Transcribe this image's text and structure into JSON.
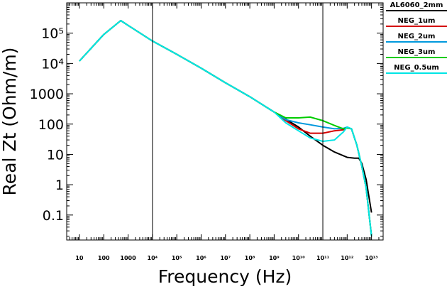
{
  "chart_data": {
    "type": "line",
    "xlabel": "Frequency (Hz)",
    "ylabel": "Real Zt (Ohm/m)",
    "x_scale": "log",
    "y_scale": "log",
    "xlim": [
      3,
      30000000000000.0
    ],
    "ylim": [
      0.015,
      1000000
    ],
    "grid": false,
    "legend_position": "right",
    "x_ticks": [
      10,
      100,
      1000,
      10000,
      100000,
      1000000,
      10000000,
      100000000,
      1000000000,
      10000000000,
      100000000000,
      1000000000000,
      10000000000000
    ],
    "x_tick_labels": [
      "10",
      "100",
      "1000",
      "10⁴",
      "10⁵",
      "10⁶",
      "10⁷",
      "10⁸",
      "10⁹",
      "10¹⁰",
      "10¹¹",
      "10¹²",
      "10¹³"
    ],
    "y_ticks": [
      0.1,
      1,
      10,
      100,
      1000,
      10000,
      100000
    ],
    "y_tick_labels": [
      "0.1",
      "1",
      "10",
      "100",
      "1000",
      "10⁴",
      "10⁵"
    ],
    "vertical_lines": [
      10000,
      100000000000
    ],
    "series": [
      {
        "name": "AL6060_2mm",
        "color": "#000000",
        "x": [
          10,
          100,
          500,
          1000,
          10000,
          100000,
          1000000,
          10000000,
          100000000,
          1000000000,
          10000000000,
          30000000000,
          100000000000,
          300000000000,
          1000000000000,
          2000000000000,
          3000000000000,
          4000000000000,
          6000000000000,
          10000000000000
        ],
        "y": [
          12000,
          90000,
          260000,
          180000,
          55000,
          20000,
          7000,
          2300,
          800,
          250,
          80,
          40,
          20,
          12,
          8,
          7.5,
          7.5,
          5,
          1.5,
          0.12
        ]
      },
      {
        "name": "NEG_1um",
        "color": "#d40000",
        "x": [
          10,
          100,
          500,
          1000,
          10000,
          100000,
          1000000,
          10000000,
          100000000,
          1000000000,
          3000000000,
          10000000000,
          30000000000,
          100000000000,
          300000000000,
          700000000000,
          1000000000000,
          1500000000000,
          2500000000000,
          4000000000000,
          6000000000000,
          10000000000000
        ],
        "y": [
          12000,
          90000,
          260000,
          180000,
          55000,
          20000,
          7000,
          2300,
          800,
          250,
          130,
          70,
          50,
          50,
          60,
          65,
          75,
          70,
          20,
          4,
          0.8,
          0.02
        ]
      },
      {
        "name": "NEG_2um",
        "color": "#0099dd",
        "x": [
          10,
          100,
          500,
          1000,
          10000,
          100000,
          1000000,
          10000000,
          100000000,
          1000000000,
          3000000000,
          10000000000,
          30000000000,
          100000000000,
          300000000000,
          700000000000,
          1000000000000,
          1500000000000,
          2500000000000,
          4000000000000,
          6000000000000,
          10000000000000
        ],
        "y": [
          12000,
          90000,
          260000,
          180000,
          55000,
          20000,
          7000,
          2300,
          800,
          250,
          140,
          110,
          95,
          80,
          70,
          72,
          80,
          70,
          20,
          4,
          0.8,
          0.02
        ]
      },
      {
        "name": "NEG_3um",
        "color": "#00cc00",
        "x": [
          10,
          100,
          500,
          1000,
          10000,
          100000,
          1000000,
          10000000,
          100000000,
          1000000000,
          3000000000,
          10000000000,
          30000000000,
          100000000000,
          300000000000,
          700000000000,
          1000000000000,
          1500000000000,
          2500000000000,
          4000000000000,
          6000000000000,
          10000000000000
        ],
        "y": [
          12000,
          90000,
          260000,
          180000,
          55000,
          20000,
          7000,
          2300,
          800,
          250,
          160,
          160,
          170,
          130,
          90,
          70,
          75,
          70,
          20,
          4,
          0.8,
          0.02
        ]
      },
      {
        "name": "NEG_0.5um",
        "color": "#00e5e5",
        "x": [
          10,
          100,
          500,
          1000,
          10000,
          100000,
          1000000,
          10000000,
          100000000,
          1000000000,
          3000000000,
          10000000000,
          30000000000,
          100000000000,
          300000000000,
          700000000000,
          1000000000000,
          1500000000000,
          2500000000000,
          4000000000000,
          6000000000000,
          10000000000000
        ],
        "y": [
          12000,
          90000,
          260000,
          180000,
          55000,
          20000,
          7000,
          2300,
          800,
          250,
          110,
          60,
          35,
          27,
          30,
          55,
          80,
          70,
          20,
          4,
          0.8,
          0.02
        ]
      }
    ]
  }
}
